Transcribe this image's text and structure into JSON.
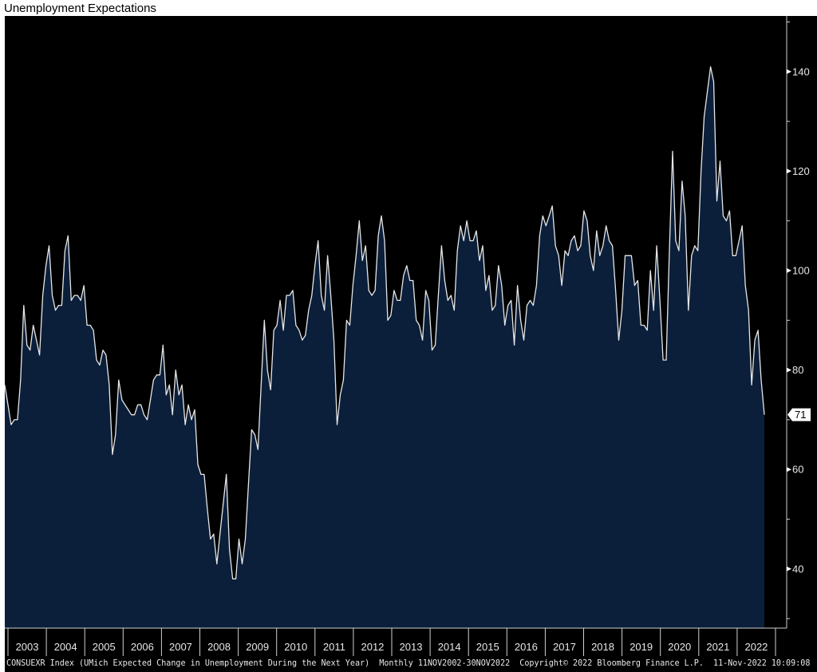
{
  "chart_data": {
    "type": "area",
    "title": "Unemployment Expectations",
    "frequency": "monthly",
    "start": "2002-11",
    "end": "2022-11",
    "values": [
      77,
      73,
      69,
      70,
      70,
      78,
      93,
      85,
      84,
      89,
      86,
      83,
      95,
      101,
      105,
      95,
      92,
      93,
      93,
      104,
      107,
      94,
      95,
      95,
      94,
      97,
      89,
      89,
      88,
      82,
      81,
      84,
      83,
      77,
      63,
      67,
      78,
      74,
      73,
      72,
      71,
      71,
      73,
      73,
      71,
      70,
      74,
      78,
      79,
      79,
      85,
      75,
      77,
      71,
      80,
      75,
      77,
      69,
      73,
      70,
      72,
      61,
      59,
      59,
      52,
      46,
      47,
      41,
      47,
      53,
      59,
      44,
      38,
      38,
      46,
      41,
      46,
      57,
      68,
      67,
      64,
      77,
      90,
      80,
      76,
      88,
      89,
      94,
      88,
      95,
      95,
      96,
      89,
      88,
      86,
      87,
      92,
      95,
      101,
      106,
      95,
      92,
      103,
      95,
      86,
      69,
      75,
      78,
      90,
      89,
      97,
      103,
      110,
      102,
      105,
      96,
      95,
      96,
      107,
      111,
      106,
      90,
      91,
      96,
      94,
      94,
      99,
      101,
      98,
      98,
      90,
      89,
      86,
      96,
      94,
      84,
      85,
      95,
      105,
      98,
      94,
      95,
      92,
      104,
      109,
      106,
      110,
      106,
      106,
      108,
      102,
      105,
      96,
      99,
      92,
      93,
      101,
      97,
      89,
      93,
      94,
      85,
      97,
      90,
      86,
      93,
      94,
      93,
      97,
      107,
      111,
      109,
      111,
      113,
      105,
      103,
      97,
      104,
      103,
      106,
      107,
      104,
      105,
      112,
      110,
      103,
      100,
      108,
      103,
      105,
      109,
      106,
      105,
      96,
      86,
      92,
      103,
      103,
      103,
      97,
      98,
      89,
      89,
      88,
      100,
      92,
      105,
      94,
      82,
      82,
      104,
      124,
      106,
      104,
      118,
      111,
      92,
      103,
      105,
      104,
      120,
      131,
      136,
      141,
      138,
      114,
      122,
      111,
      110,
      112,
      103,
      103,
      106,
      109,
      97,
      92,
      77,
      86,
      88,
      78,
      71
    ],
    "last_value_label": "71",
    "ylim": [
      28,
      151
    ],
    "y_ticks": [
      "40",
      "60",
      "80",
      "100",
      "120",
      "140"
    ],
    "x_tick_labels": [
      "2003",
      "2004",
      "2005",
      "2006",
      "2007",
      "2008",
      "2009",
      "2010",
      "2011",
      "2012",
      "2013",
      "2014",
      "2015",
      "2016",
      "2017",
      "2018",
      "2019",
      "2020",
      "2021",
      "2022"
    ],
    "grid": false,
    "colors": {
      "background": "#000000",
      "fill": "#0b1f3b",
      "line": "#e6e6e6",
      "axis": "#d0d0d0"
    }
  },
  "footer": "CONSUEXR Index (UMich Expected Change in Unemployment During the Next Year)  Monthly 11NOV2002-30NOV2022  Copyright© 2022 Bloomberg Finance L.P.  11-Nov-2022 10:09:08"
}
